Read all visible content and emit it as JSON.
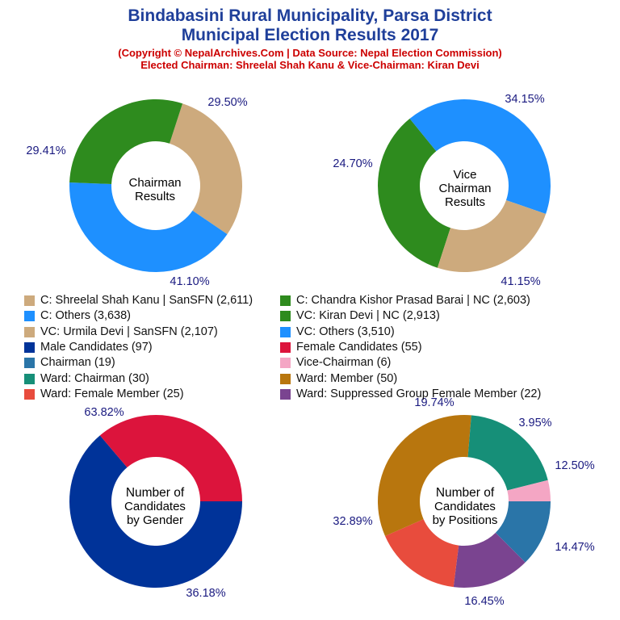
{
  "header": {
    "title_line1": "Bindabasini Rural Municipality, Parsa District",
    "title_line2": "Municipal Election Results 2017",
    "copyright": "(Copyright © NepalArchives.Com | Data Source: Nepal Election Commission)",
    "elected": "Elected Chairman: Shreelal Shah Kanu & Vice-Chairman: Kiran Devi"
  },
  "legend": [
    {
      "label": "C: Shreelal Shah Kanu | SanSFN (2,611)",
      "color": "#cdaa7d"
    },
    {
      "label": "C: Chandra Kishor Prasad Barai | NC (2,603)",
      "color": "#2e8b1e"
    },
    {
      "label": "C: Others (3,638)",
      "color": "#1e90ff"
    },
    {
      "label": "VC: Kiran Devi | NC (2,913)",
      "color": "#2e8b1e"
    },
    {
      "label": "VC: Urmila Devi | SanSFN (2,107)",
      "color": "#cdaa7d"
    },
    {
      "label": "VC: Others (3,510)",
      "color": "#1e90ff"
    },
    {
      "label": "Male Candidates (97)",
      "color": "#003399"
    },
    {
      "label": "Female Candidates (55)",
      "color": "#dc143c"
    },
    {
      "label": "Chairman (19)",
      "color": "#2a75a8"
    },
    {
      "label": "Vice-Chairman (6)",
      "color": "#f4a6c4"
    },
    {
      "label": "Ward: Chairman (30)",
      "color": "#168f78"
    },
    {
      "label": "Ward: Member (50)",
      "color": "#b8760e"
    },
    {
      "label": "Ward: Female Member (25)",
      "color": "#e84c3d"
    },
    {
      "label": "Ward: Suppressed Group Female Member (22)",
      "color": "#7a4490"
    }
  ],
  "chart_data": [
    {
      "type": "pie",
      "title": "Chairman Results",
      "center_lines": [
        "Chairman",
        "Results"
      ],
      "slices": [
        {
          "label": "C: Shreelal Shah Kanu | SanSFN",
          "value": 2611,
          "percent": "29.50%",
          "color": "#cdaa7d"
        },
        {
          "label": "C: Others",
          "value": 3638,
          "percent": "41.10%",
          "color": "#1e90ff"
        },
        {
          "label": "C: Chandra Kishor Prasad Barai | NC",
          "value": 2603,
          "percent": "29.41%",
          "color": "#2e8b1e"
        }
      ]
    },
    {
      "type": "pie",
      "title": "Vice Chairman Results",
      "center_lines": [
        "Vice",
        "Chairman",
        "Results"
      ],
      "slices": [
        {
          "label": "VC: Kiran Devi | NC",
          "value": 2913,
          "percent": "34.15%",
          "color": "#2e8b1e"
        },
        {
          "label": "VC: Others",
          "value": 3510,
          "percent": "41.15%",
          "color": "#1e90ff"
        },
        {
          "label": "VC: Urmila Devi | SanSFN",
          "value": 2107,
          "percent": "24.70%",
          "color": "#cdaa7d"
        }
      ]
    },
    {
      "type": "pie",
      "title": "Number of Candidates by Gender",
      "center_lines": [
        "Number of",
        "Candidates",
        "by Gender"
      ],
      "slices": [
        {
          "label": "Male Candidates",
          "value": 97,
          "percent": "63.82%",
          "color": "#003399"
        },
        {
          "label": "Female Candidates",
          "value": 55,
          "percent": "36.18%",
          "color": "#dc143c"
        }
      ]
    },
    {
      "type": "pie",
      "title": "Number of Candidates by Positions",
      "center_lines": [
        "Number of",
        "Candidates",
        "by Positions"
      ],
      "slices": [
        {
          "label": "Chairman",
          "value": 19,
          "percent": "12.50%",
          "color": "#2a75a8"
        },
        {
          "label": "Ward: Suppressed Group Female Member",
          "value": 22,
          "percent": "14.47%",
          "color": "#7a4490"
        },
        {
          "label": "Ward: Female Member",
          "value": 25,
          "percent": "16.45%",
          "color": "#e84c3d"
        },
        {
          "label": "Ward: Member",
          "value": 50,
          "percent": "32.89%",
          "color": "#b8760e"
        },
        {
          "label": "Ward: Chairman",
          "value": 30,
          "percent": "19.74%",
          "color": "#168f78"
        },
        {
          "label": "Vice-Chairman",
          "value": 6,
          "percent": "3.95%",
          "color": "#f4a6c4"
        }
      ]
    }
  ]
}
